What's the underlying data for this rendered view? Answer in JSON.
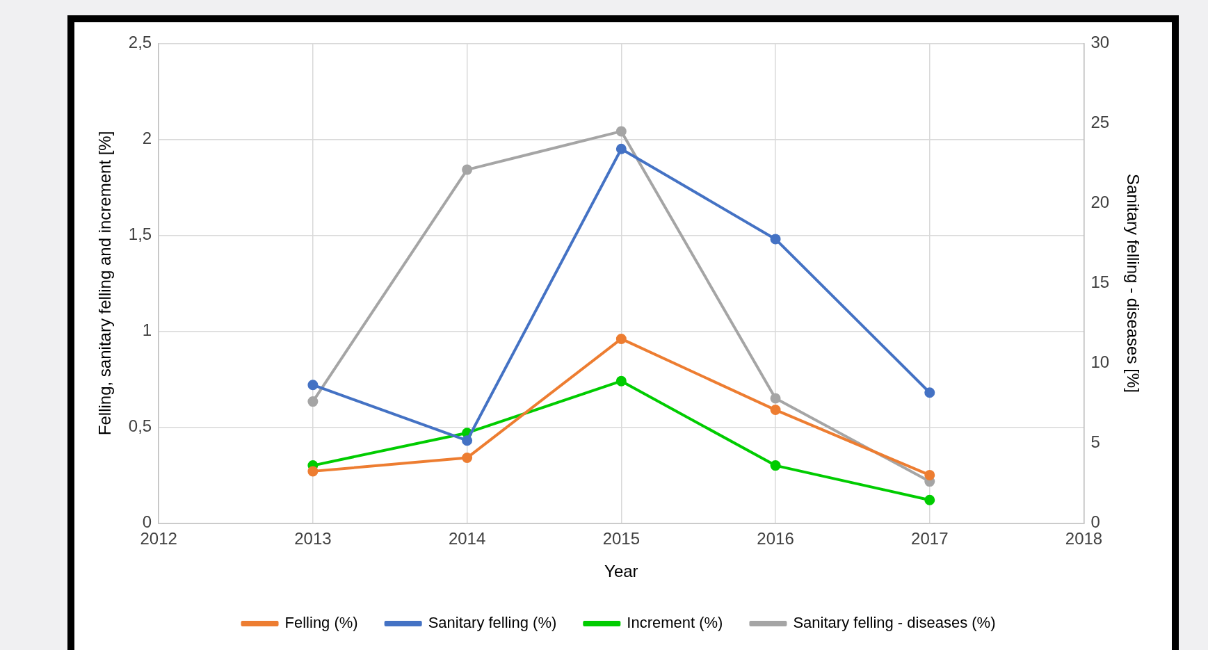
{
  "chart_data": {
    "type": "line",
    "xlabel": "Year",
    "ylabel": "Felling, sanitary felling and increment [%]",
    "y2label": "Sanitary felling - diseases [%]",
    "x": [
      2013,
      2014,
      2015,
      2016,
      2017
    ],
    "series": [
      {
        "name": "Felling (%)",
        "color": "#ed7d31",
        "values": [
          0.27,
          0.34,
          0.96,
          0.59,
          0.25
        ]
      },
      {
        "name": "Sanitary felling (%)",
        "color": "#4472c4",
        "values": [
          0.72,
          0.43,
          1.95,
          1.48,
          0.68
        ]
      },
      {
        "name": "Increment (%)",
        "color": "#00cc00",
        "values": [
          0.3,
          0.47,
          0.74,
          0.3,
          0.12
        ]
      },
      {
        "name": "Sanitary felling - diseases (%)",
        "color": "#a5a5a5",
        "values": [
          7.6,
          22.1,
          24.5,
          7.8,
          2.6
        ],
        "axis": "y2"
      }
    ],
    "xlim": [
      2012,
      2018
    ],
    "xticks": [
      2012,
      2013,
      2014,
      2015,
      2016,
      2017,
      2018
    ],
    "ylim": [
      0,
      2.5
    ],
    "yticks": [
      0,
      {
        "value": 0.5,
        "label": "0,5"
      },
      1,
      {
        "value": 1.5,
        "label": "1,5"
      },
      2,
      {
        "value": 2.5,
        "label": "2,5"
      }
    ],
    "y2lim": [
      0,
      30
    ],
    "y2ticks": [
      0,
      5,
      10,
      15,
      20,
      25,
      30
    ],
    "grid": true,
    "legend": "bottom",
    "marker": "circle",
    "line_style": "solid"
  }
}
